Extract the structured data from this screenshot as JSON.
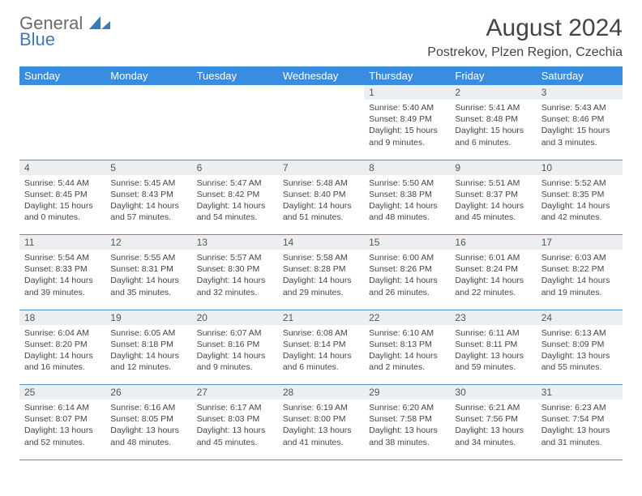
{
  "logo": {
    "general": "General",
    "blue": "Blue"
  },
  "title": "August 2024",
  "location": "Postrekov, Plzen Region, Czechia",
  "colors": {
    "header_bg": "#3a8dde",
    "header_text": "#ffffff",
    "daynum_bg": "#eceff1",
    "border": "#5a8fc9",
    "logo_blue": "#3a7bbf",
    "logo_gray": "#6b6b6b"
  },
  "dayNames": [
    "Sunday",
    "Monday",
    "Tuesday",
    "Wednesday",
    "Thursday",
    "Friday",
    "Saturday"
  ],
  "weeks": [
    [
      null,
      null,
      null,
      null,
      {
        "n": "1",
        "sr": "5:40 AM",
        "ss": "8:49 PM",
        "dl": "15 hours and 9 minutes."
      },
      {
        "n": "2",
        "sr": "5:41 AM",
        "ss": "8:48 PM",
        "dl": "15 hours and 6 minutes."
      },
      {
        "n": "3",
        "sr": "5:43 AM",
        "ss": "8:46 PM",
        "dl": "15 hours and 3 minutes."
      }
    ],
    [
      {
        "n": "4",
        "sr": "5:44 AM",
        "ss": "8:45 PM",
        "dl": "15 hours and 0 minutes."
      },
      {
        "n": "5",
        "sr": "5:45 AM",
        "ss": "8:43 PM",
        "dl": "14 hours and 57 minutes."
      },
      {
        "n": "6",
        "sr": "5:47 AM",
        "ss": "8:42 PM",
        "dl": "14 hours and 54 minutes."
      },
      {
        "n": "7",
        "sr": "5:48 AM",
        "ss": "8:40 PM",
        "dl": "14 hours and 51 minutes."
      },
      {
        "n": "8",
        "sr": "5:50 AM",
        "ss": "8:38 PM",
        "dl": "14 hours and 48 minutes."
      },
      {
        "n": "9",
        "sr": "5:51 AM",
        "ss": "8:37 PM",
        "dl": "14 hours and 45 minutes."
      },
      {
        "n": "10",
        "sr": "5:52 AM",
        "ss": "8:35 PM",
        "dl": "14 hours and 42 minutes."
      }
    ],
    [
      {
        "n": "11",
        "sr": "5:54 AM",
        "ss": "8:33 PM",
        "dl": "14 hours and 39 minutes."
      },
      {
        "n": "12",
        "sr": "5:55 AM",
        "ss": "8:31 PM",
        "dl": "14 hours and 35 minutes."
      },
      {
        "n": "13",
        "sr": "5:57 AM",
        "ss": "8:30 PM",
        "dl": "14 hours and 32 minutes."
      },
      {
        "n": "14",
        "sr": "5:58 AM",
        "ss": "8:28 PM",
        "dl": "14 hours and 29 minutes."
      },
      {
        "n": "15",
        "sr": "6:00 AM",
        "ss": "8:26 PM",
        "dl": "14 hours and 26 minutes."
      },
      {
        "n": "16",
        "sr": "6:01 AM",
        "ss": "8:24 PM",
        "dl": "14 hours and 22 minutes."
      },
      {
        "n": "17",
        "sr": "6:03 AM",
        "ss": "8:22 PM",
        "dl": "14 hours and 19 minutes."
      }
    ],
    [
      {
        "n": "18",
        "sr": "6:04 AM",
        "ss": "8:20 PM",
        "dl": "14 hours and 16 minutes."
      },
      {
        "n": "19",
        "sr": "6:05 AM",
        "ss": "8:18 PM",
        "dl": "14 hours and 12 minutes."
      },
      {
        "n": "20",
        "sr": "6:07 AM",
        "ss": "8:16 PM",
        "dl": "14 hours and 9 minutes."
      },
      {
        "n": "21",
        "sr": "6:08 AM",
        "ss": "8:14 PM",
        "dl": "14 hours and 6 minutes."
      },
      {
        "n": "22",
        "sr": "6:10 AM",
        "ss": "8:13 PM",
        "dl": "14 hours and 2 minutes."
      },
      {
        "n": "23",
        "sr": "6:11 AM",
        "ss": "8:11 PM",
        "dl": "13 hours and 59 minutes."
      },
      {
        "n": "24",
        "sr": "6:13 AM",
        "ss": "8:09 PM",
        "dl": "13 hours and 55 minutes."
      }
    ],
    [
      {
        "n": "25",
        "sr": "6:14 AM",
        "ss": "8:07 PM",
        "dl": "13 hours and 52 minutes."
      },
      {
        "n": "26",
        "sr": "6:16 AM",
        "ss": "8:05 PM",
        "dl": "13 hours and 48 minutes."
      },
      {
        "n": "27",
        "sr": "6:17 AM",
        "ss": "8:03 PM",
        "dl": "13 hours and 45 minutes."
      },
      {
        "n": "28",
        "sr": "6:19 AM",
        "ss": "8:00 PM",
        "dl": "13 hours and 41 minutes."
      },
      {
        "n": "29",
        "sr": "6:20 AM",
        "ss": "7:58 PM",
        "dl": "13 hours and 38 minutes."
      },
      {
        "n": "30",
        "sr": "6:21 AM",
        "ss": "7:56 PM",
        "dl": "13 hours and 34 minutes."
      },
      {
        "n": "31",
        "sr": "6:23 AM",
        "ss": "7:54 PM",
        "dl": "13 hours and 31 minutes."
      }
    ]
  ],
  "labels": {
    "sunrise": "Sunrise:",
    "sunset": "Sunset:",
    "daylight": "Daylight:"
  }
}
